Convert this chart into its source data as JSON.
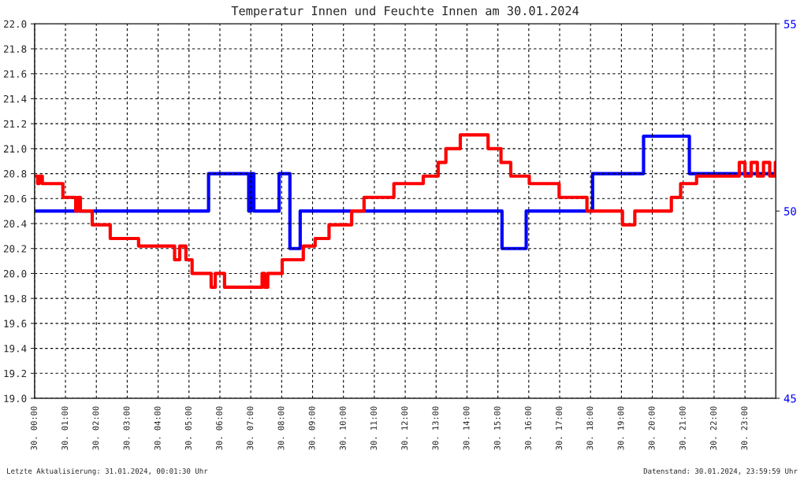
{
  "chart_data": {
    "type": "step",
    "title": "Temperatur Innen und Feuchte Innen am 30.01.2024",
    "xlim": [
      "2024-01-30T00:00",
      "2024-01-31T00:00"
    ],
    "xticks": [
      {
        "value": "2024-01-30T00:00",
        "label": "30. 00:00"
      },
      {
        "value": "2024-01-30T01:00",
        "label": "30. 01:00"
      },
      {
        "value": "2024-01-30T02:00",
        "label": "30. 02:00"
      },
      {
        "value": "2024-01-30T03:00",
        "label": "30. 03:00"
      },
      {
        "value": "2024-01-30T04:00",
        "label": "30. 04:00"
      },
      {
        "value": "2024-01-30T05:00",
        "label": "30. 05:00"
      },
      {
        "value": "2024-01-30T06:00",
        "label": "30. 06:00"
      },
      {
        "value": "2024-01-30T07:00",
        "label": "30. 07:00"
      },
      {
        "value": "2024-01-30T08:00",
        "label": "30. 08:00"
      },
      {
        "value": "2024-01-30T09:00",
        "label": "30. 09:00"
      },
      {
        "value": "2024-01-30T10:00",
        "label": "30. 10:00"
      },
      {
        "value": "2024-01-30T11:00",
        "label": "30. 11:00"
      },
      {
        "value": "2024-01-30T12:00",
        "label": "30. 12:00"
      },
      {
        "value": "2024-01-30T13:00",
        "label": "30. 13:00"
      },
      {
        "value": "2024-01-30T14:00",
        "label": "30. 14:00"
      },
      {
        "value": "2024-01-30T15:00",
        "label": "30. 15:00"
      },
      {
        "value": "2024-01-30T16:00",
        "label": "30. 16:00"
      },
      {
        "value": "2024-01-30T17:00",
        "label": "30. 17:00"
      },
      {
        "value": "2024-01-30T18:00",
        "label": "30. 18:00"
      },
      {
        "value": "2024-01-30T19:00",
        "label": "30. 19:00"
      },
      {
        "value": "2024-01-30T20:00",
        "label": "30. 20:00"
      },
      {
        "value": "2024-01-30T21:00",
        "label": "30. 21:00"
      },
      {
        "value": "2024-01-30T22:00",
        "label": "30. 22:00"
      },
      {
        "value": "2024-01-30T23:00",
        "label": "30. 23:00"
      }
    ],
    "ylim": [
      19.0,
      22.0
    ],
    "yticks": [
      {
        "value": 19,
        "label": "19.0"
      },
      19.2,
      19.4,
      19.6,
      19.8,
      {
        "value": 20,
        "label": "20.0"
      },
      20.2,
      20.4,
      20.6,
      20.8,
      {
        "value": 21,
        "label": "21.0"
      },
      21.2,
      21.4,
      21.6,
      21.8,
      {
        "value": 22,
        "label": "22.0"
      }
    ],
    "y2lim": [
      45,
      55
    ],
    "y2ticks": [
      45,
      50,
      55
    ],
    "grid": true,
    "line_style": "solid",
    "series": [
      {
        "color": "#ff0000",
        "x": [
          "2024-01-30T00:00",
          "2024-01-30T00:06",
          "2024-01-30T00:09",
          "2024-01-30T00:15",
          "2024-01-30T00:19",
          "2024-01-30T00:55",
          "2024-01-30T01:20",
          "2024-01-30T01:24",
          "2024-01-30T01:29",
          "2024-01-30T01:52",
          "2024-01-30T02:27",
          "2024-01-30T03:22",
          "2024-01-30T04:32",
          "2024-01-30T04:42",
          "2024-01-30T04:54",
          "2024-01-30T05:06",
          "2024-01-30T05:43",
          "2024-01-30T05:51",
          "2024-01-30T06:09",
          "2024-01-30T07:22",
          "2024-01-30T07:27",
          "2024-01-30T07:33",
          "2024-01-30T08:01",
          "2024-01-30T08:42",
          "2024-01-30T09:05",
          "2024-01-30T09:32",
          "2024-01-30T10:16",
          "2024-01-30T10:40",
          "2024-01-30T11:38",
          "2024-01-30T12:35",
          "2024-01-30T13:04",
          "2024-01-30T13:19",
          "2024-01-30T13:47",
          "2024-01-30T14:41",
          "2024-01-30T15:06",
          "2024-01-30T15:25",
          "2024-01-30T16:01",
          "2024-01-30T16:59",
          "2024-01-30T17:53",
          "2024-01-30T19:02",
          "2024-01-30T19:26",
          "2024-01-30T20:37",
          "2024-01-30T20:55",
          "2024-01-30T21:26",
          "2024-01-30T22:49",
          "2024-01-30T23:00",
          "2024-01-30T23:12",
          "2024-01-30T23:24",
          "2024-01-30T23:36",
          "2024-01-30T23:48",
          "2024-01-30T23:59"
        ],
        "values": [
          20.78,
          20.72,
          20.78,
          20.72,
          20.72,
          20.61,
          20.5,
          20.61,
          20.5,
          20.39,
          20.28,
          20.22,
          20.11,
          20.22,
          20.11,
          20.0,
          19.89,
          20.0,
          19.89,
          20.0,
          19.89,
          20.0,
          20.11,
          20.22,
          20.28,
          20.39,
          20.5,
          20.61,
          20.72,
          20.78,
          20.89,
          21.0,
          21.11,
          21.0,
          20.89,
          20.78,
          20.72,
          20.61,
          20.5,
          20.39,
          20.5,
          20.61,
          20.72,
          20.78,
          20.89,
          20.78,
          20.89,
          20.78,
          20.89,
          20.78,
          20.89
        ]
      },
      {
        "color": "#0000ff",
        "axis": "y2",
        "x": [
          "2024-01-30T00:00",
          "2024-01-30T05:38",
          "2024-01-30T06:56",
          "2024-01-30T07:00",
          "2024-01-30T07:06",
          "2024-01-30T07:14",
          "2024-01-30T07:55",
          "2024-01-30T08:16",
          "2024-01-30T08:36",
          "2024-01-30T15:08",
          "2024-01-30T15:55",
          "2024-01-30T18:04",
          "2024-01-30T19:43",
          "2024-01-30T21:12",
          "2024-01-30T23:59"
        ],
        "values": [
          50,
          51,
          50,
          51,
          50,
          50,
          51,
          49,
          50,
          49,
          50,
          51,
          52,
          51,
          51
        ]
      }
    ],
    "annotations": [
      "Letzte Aktualisierung: 31.01.2024, 00:01:30 Uhr",
      "Datenstand: 30.01.2024, 23:59:59 Uhr"
    ]
  }
}
